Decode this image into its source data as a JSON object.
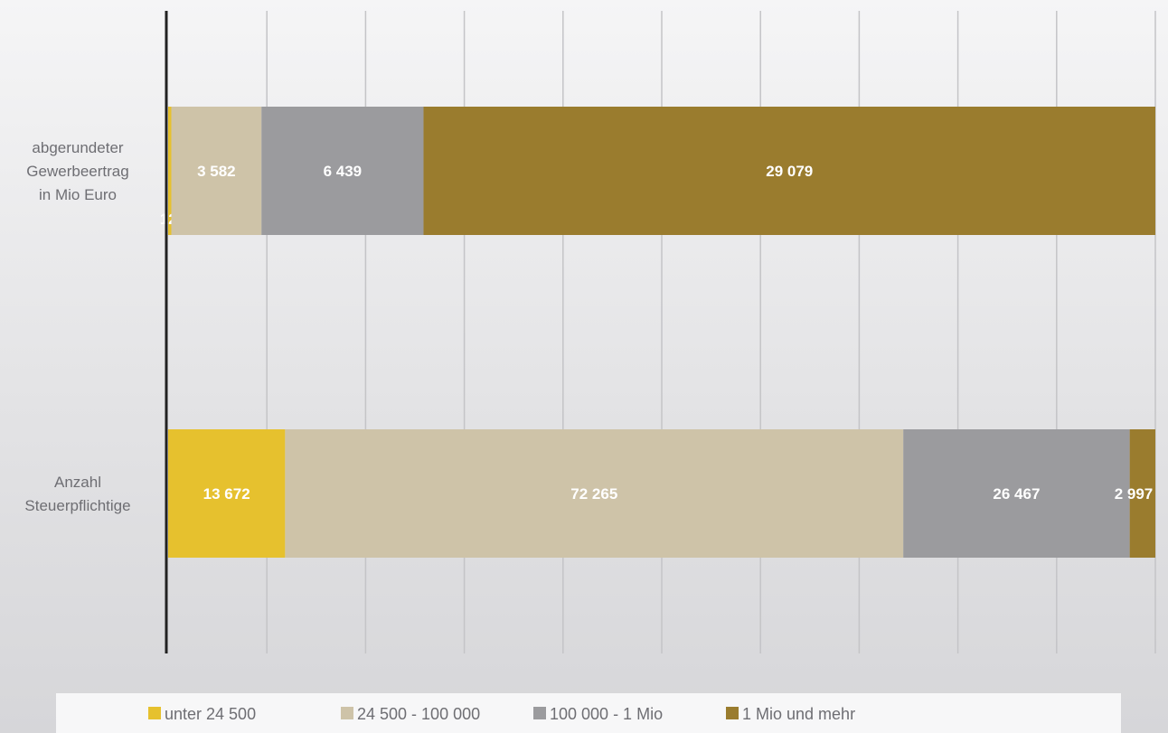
{
  "chart_data": {
    "type": "bar",
    "orientation": "horizontal",
    "stacked": "percent",
    "categories": [
      "abgerundeter Gewerbeertrag in Mio Euro",
      "Anzahl Steuerpflichtige"
    ],
    "category_lines": [
      [
        "abgerundeter",
        "Gewerbeertrag",
        "in Mio Euro"
      ],
      [
        "Anzahl",
        "Steuerpflichtige"
      ]
    ],
    "series": [
      {
        "name": "unter 24 500",
        "color": "#e6c12e",
        "values": [
          126,
          13672
        ],
        "labels": [
          "126",
          "13 672"
        ]
      },
      {
        "name": "24 500 - 100 000",
        "color": "#cec3a8",
        "values": [
          3582,
          72265
        ],
        "labels": [
          "3 582",
          "72 265"
        ]
      },
      {
        "name": "100 000 - 1 Mio",
        "color": "#9b9b9e",
        "values": [
          6439,
          26467
        ],
        "labels": [
          "6 439",
          "26 467"
        ]
      },
      {
        "name": "1 Mio und mehr",
        "color": "#9a7c2e",
        "values": [
          29079,
          2997
        ],
        "labels": [
          "29 079",
          "2 997"
        ]
      }
    ],
    "grid": true,
    "grid_divisions": 10,
    "legend": "bottom",
    "title": "",
    "xlabel": "",
    "ylabel": ""
  }
}
